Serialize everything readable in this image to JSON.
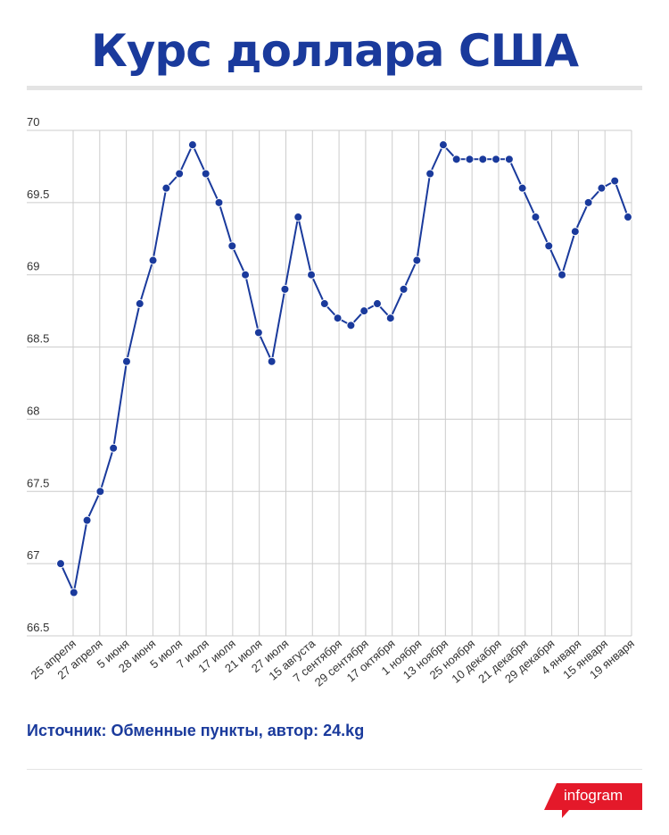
{
  "title": "Курс доллара США",
  "source": "Источник: Обменные пункты, автор: 24.kg",
  "brand": "infogram",
  "colors": {
    "accent": "#1a3a9c",
    "brand_red": "#e4192a",
    "grid": "#cccccc"
  },
  "chart_data": {
    "type": "line",
    "title": "Курс доллара США",
    "xlabel": "",
    "ylabel": "",
    "ylim": [
      66.5,
      70
    ],
    "yticks": [
      70,
      69.5,
      69,
      68.5,
      68,
      67.5,
      67,
      66.5
    ],
    "ytick_labels": [
      "70",
      "69.5",
      "69",
      "68.5",
      "68",
      "67.5",
      "67",
      "66.5"
    ],
    "grid": true,
    "x_labels": [
      "25 апреля",
      "27 апреля",
      "5 июня",
      "28 июня",
      "5 июля",
      "7 июля",
      "17 июля",
      "21 июля",
      "27 июля",
      "15 августа",
      "7 сентября",
      "29 сентября",
      "17 октября",
      "1 ноября",
      "13 ноября",
      "25 ноября",
      "10 декабря",
      "21 декабря",
      "29 декабря",
      "4 января",
      "15 января",
      "19 января"
    ],
    "values": [
      67.0,
      66.8,
      67.3,
      67.5,
      67.8,
      68.4,
      68.8,
      69.1,
      69.6,
      69.7,
      69.9,
      69.7,
      69.5,
      69.2,
      69.0,
      68.6,
      68.4,
      68.9,
      69.4,
      69.0,
      68.8,
      68.7,
      68.65,
      68.75,
      68.8,
      68.7,
      68.9,
      69.1,
      69.7,
      69.9,
      69.8,
      69.8,
      69.8,
      69.8,
      69.8,
      69.6,
      69.4,
      69.2,
      69.0,
      69.3,
      69.5,
      69.6,
      69.65,
      69.4
    ]
  }
}
